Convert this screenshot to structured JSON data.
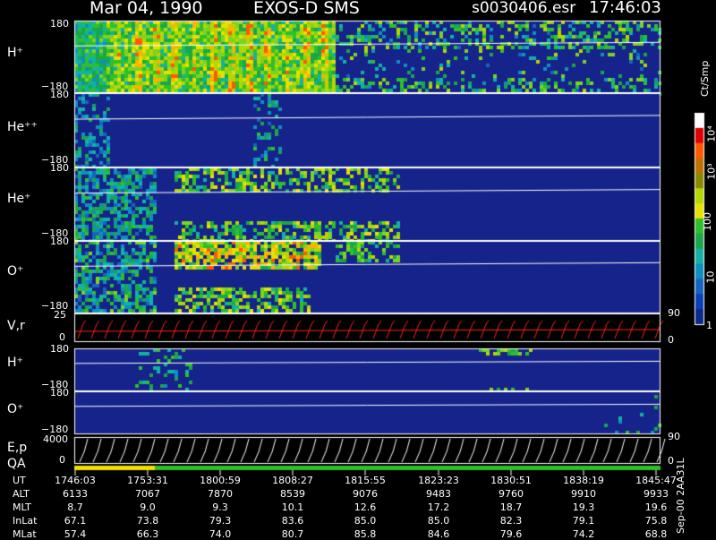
{
  "header": {
    "date": "Mar 04, 1990",
    "instrument": "EXOS-D SMS",
    "file": "s0030406.esr",
    "time": "17:46:03"
  },
  "colorbar": {
    "title": "Ct/Smp",
    "ticks": [
      "10⁴",
      "10³",
      "100",
      "10",
      "1"
    ]
  },
  "panels": [
    {
      "label": "H⁺",
      "top": "180",
      "bottom": "−180"
    },
    {
      "label": "He⁺⁺",
      "top": "180",
      "bottom": "−180"
    },
    {
      "label": "He⁺",
      "top": "180",
      "bottom": "−180"
    },
    {
      "label": "O⁺",
      "top": "180",
      "bottom": "−180"
    },
    {
      "label": "V,r",
      "top": "25",
      "bottom": "0",
      "right_top": "90",
      "right_bottom": "0"
    },
    {
      "label": "H⁺",
      "top": "180",
      "bottom": "−180"
    },
    {
      "label": "O⁺",
      "top": "180",
      "bottom": "−180"
    },
    {
      "label": "E,p",
      "label2": "QA",
      "top": "4000",
      "bottom": "0",
      "right_top": "90",
      "right_bottom": "0"
    }
  ],
  "side_label": "Sep-00  2AA31L",
  "chart_data": {
    "type": "heatmap",
    "title": "Mar 04, 1990   EXOS-D SMS",
    "rows": [
      "UT",
      "ALT",
      "MLT",
      "InLat",
      "MLat"
    ],
    "columns": [
      [
        "1746:03",
        "6133",
        "8.7",
        "67.1",
        "57.4"
      ],
      [
        "1753:31",
        "7067",
        "9.0",
        "73.8",
        "66.3"
      ],
      [
        "1800:59",
        "7870",
        "9.3",
        "79.3",
        "74.0"
      ],
      [
        "1808:27",
        "8539",
        "10.1",
        "83.6",
        "80.7"
      ],
      [
        "1815:55",
        "9076",
        "12.6",
        "85.0",
        "85.8"
      ],
      [
        "1823:23",
        "9483",
        "17.2",
        "85.0",
        "84.6"
      ],
      [
        "1830:51",
        "9760",
        "18.7",
        "82.3",
        "79.6"
      ],
      [
        "1838:19",
        "9910",
        "19.3",
        "79.1",
        "74.2"
      ],
      [
        "1845:47",
        "9933",
        "19.6",
        "75.8",
        "68.8"
      ]
    ],
    "colorbar_ticks": [
      1,
      10,
      100,
      1000,
      10000
    ],
    "colorbar_title": "Ct/Smp"
  }
}
